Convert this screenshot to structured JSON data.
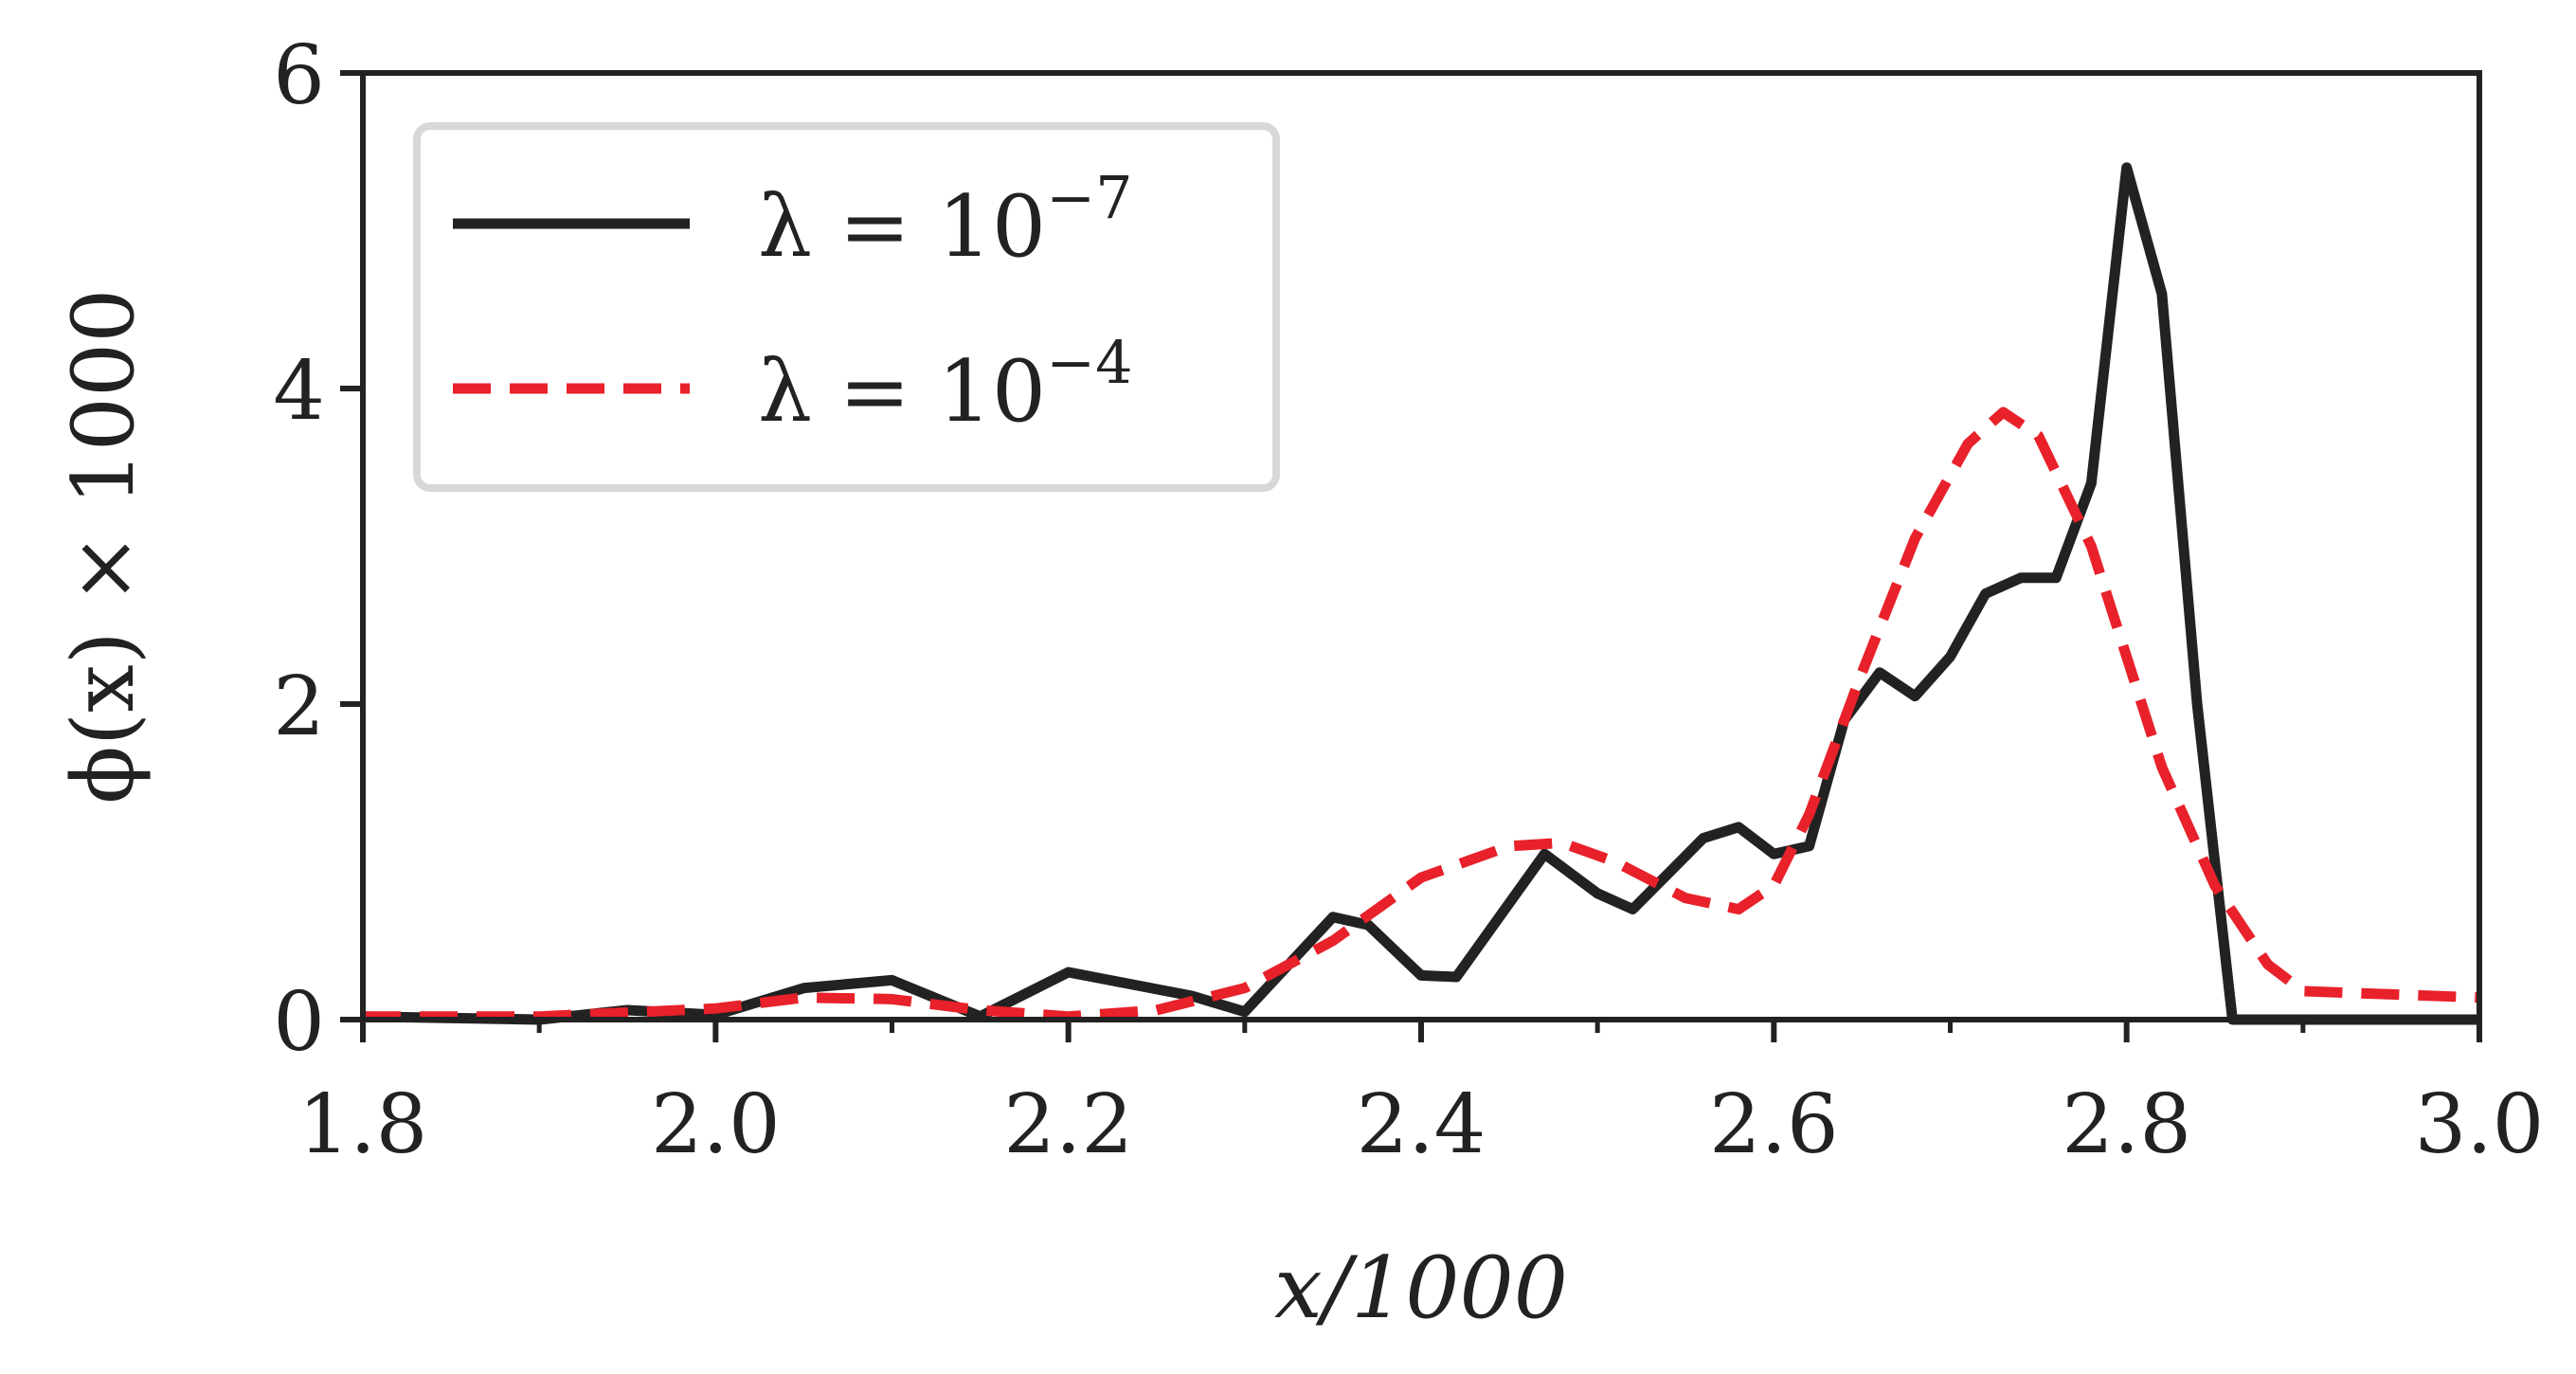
{
  "chart_data": {
    "type": "line",
    "xlabel": "x/1000",
    "ylabel": "ϕ(x) × 1000",
    "xlim": [
      1.8,
      3.0
    ],
    "ylim": [
      0,
      6
    ],
    "x_ticks": [
      1.8,
      2.0,
      2.2,
      2.4,
      2.6,
      2.8,
      3.0
    ],
    "x_tick_labels": [
      "1.8",
      "2.0",
      "2.2",
      "2.4",
      "2.6",
      "2.8",
      "3.0"
    ],
    "x_minor_ticks": [
      1.9,
      2.1,
      2.3,
      2.5,
      2.7,
      2.9
    ],
    "y_ticks": [
      0,
      2,
      4,
      6
    ],
    "y_tick_labels": [
      "0",
      "2",
      "4",
      "6"
    ],
    "grid": false,
    "legend_position": "top-left",
    "series": [
      {
        "name": "λ = 10⁻⁷",
        "legend_base": "λ = 10",
        "legend_exp": "−7",
        "color": "#222222",
        "style": "solid",
        "points": [
          [
            1.8,
            0.02
          ],
          [
            1.9,
            0.0
          ],
          [
            1.95,
            0.06
          ],
          [
            2.0,
            0.03
          ],
          [
            2.05,
            0.2
          ],
          [
            2.1,
            0.25
          ],
          [
            2.15,
            0.02
          ],
          [
            2.2,
            0.3
          ],
          [
            2.27,
            0.15
          ],
          [
            2.3,
            0.05
          ],
          [
            2.35,
            0.65
          ],
          [
            2.37,
            0.6
          ],
          [
            2.4,
            0.28
          ],
          [
            2.42,
            0.27
          ],
          [
            2.47,
            1.05
          ],
          [
            2.5,
            0.8
          ],
          [
            2.52,
            0.7
          ],
          [
            2.56,
            1.15
          ],
          [
            2.58,
            1.22
          ],
          [
            2.6,
            1.05
          ],
          [
            2.62,
            1.1
          ],
          [
            2.64,
            1.9
          ],
          [
            2.66,
            2.2
          ],
          [
            2.68,
            2.05
          ],
          [
            2.7,
            2.3
          ],
          [
            2.72,
            2.7
          ],
          [
            2.74,
            2.8
          ],
          [
            2.76,
            2.8
          ],
          [
            2.78,
            3.4
          ],
          [
            2.8,
            5.4
          ],
          [
            2.82,
            4.6
          ],
          [
            2.84,
            2.0
          ],
          [
            2.86,
            0.0
          ],
          [
            3.0,
            0.0
          ]
        ]
      },
      {
        "name": "λ = 10⁻⁴",
        "legend_base": "λ = 10",
        "legend_exp": "−4",
        "color": "#e8212a",
        "style": "dashed",
        "points": [
          [
            1.8,
            0.02
          ],
          [
            1.9,
            0.02
          ],
          [
            2.0,
            0.07
          ],
          [
            2.05,
            0.14
          ],
          [
            2.1,
            0.13
          ],
          [
            2.15,
            0.06
          ],
          [
            2.2,
            0.02
          ],
          [
            2.25,
            0.06
          ],
          [
            2.3,
            0.2
          ],
          [
            2.35,
            0.5
          ],
          [
            2.4,
            0.9
          ],
          [
            2.45,
            1.1
          ],
          [
            2.48,
            1.12
          ],
          [
            2.51,
            1.0
          ],
          [
            2.55,
            0.77
          ],
          [
            2.58,
            0.7
          ],
          [
            2.6,
            0.85
          ],
          [
            2.62,
            1.3
          ],
          [
            2.65,
            2.2
          ],
          [
            2.68,
            3.05
          ],
          [
            2.71,
            3.65
          ],
          [
            2.73,
            3.85
          ],
          [
            2.75,
            3.7
          ],
          [
            2.78,
            3.0
          ],
          [
            2.82,
            1.6
          ],
          [
            2.85,
            0.85
          ],
          [
            2.88,
            0.35
          ],
          [
            2.9,
            0.18
          ],
          [
            3.0,
            0.14
          ]
        ]
      }
    ]
  }
}
